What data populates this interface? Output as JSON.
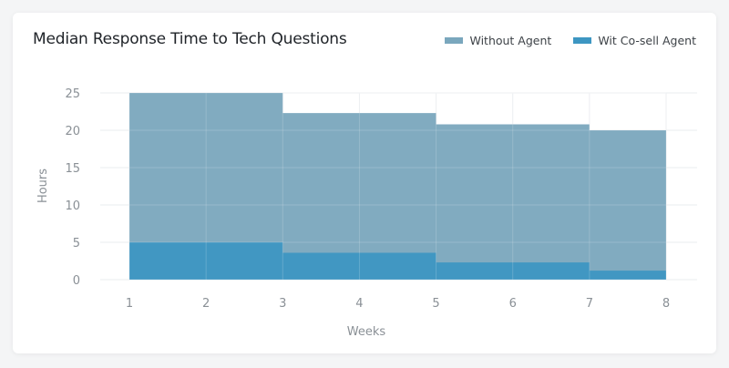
{
  "colors": {
    "series_without": "#7aa7bd",
    "series_with": "#3d96c2",
    "grid": "#e9ecef"
  },
  "chart_data": {
    "type": "area",
    "title": "Median Response Time to Tech Questions",
    "xlabel": "Weeks",
    "ylabel": "Hours",
    "x": [
      1,
      2,
      3,
      4,
      5,
      6,
      7,
      8
    ],
    "xlim": [
      1,
      8
    ],
    "ylim": [
      0,
      25
    ],
    "yticks": [
      0,
      5,
      10,
      15,
      20,
      25
    ],
    "grid": true,
    "legend_position": "top-right",
    "step": true,
    "series": [
      {
        "name": "Without Agent",
        "color": "#7aa7bd",
        "values": [
          25,
          25,
          22.3,
          22.3,
          20.8,
          20.8,
          20,
          20
        ]
      },
      {
        "name": "Wit Co-sell Agent",
        "color": "#3d96c2",
        "values": [
          5,
          5,
          3.6,
          3.6,
          2.3,
          2.3,
          1.2,
          1.2
        ]
      }
    ]
  }
}
